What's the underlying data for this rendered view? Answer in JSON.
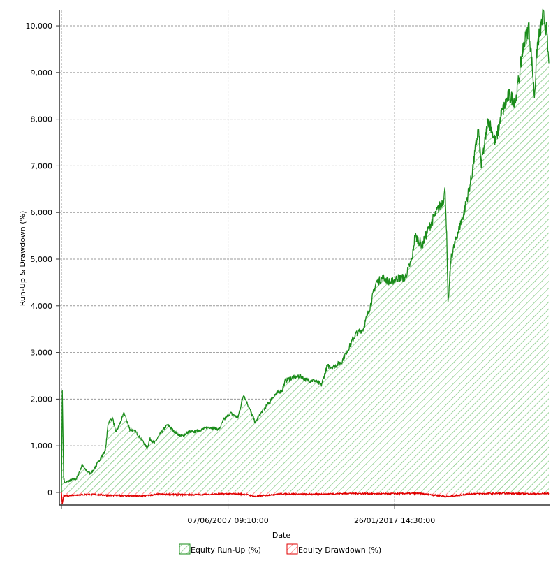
{
  "chart_data": {
    "type": "area",
    "title": "",
    "xlabel": "Date",
    "ylabel": "Run-Up & Drawdown (%)",
    "xlim": [
      "1997-10-15",
      "2025-12-31"
    ],
    "ylim": [
      -270,
      10330
    ],
    "grid": true,
    "legend_placement": "bottom",
    "x_ticks": [
      {
        "date": "1997-10-15",
        "label": ""
      },
      {
        "date": "2007-06-07",
        "label": "07/06/2007 09:10:00"
      },
      {
        "date": "2017-01-26",
        "label": "26/01/2017 14:30:00"
      }
    ],
    "y_ticks": [
      {
        "value": 0,
        "label": "0"
      },
      {
        "value": 1000,
        "label": "1,000"
      },
      {
        "value": 2000,
        "label": "2,000"
      },
      {
        "value": 3000,
        "label": "3,000"
      },
      {
        "value": 4000,
        "label": "4,000"
      },
      {
        "value": 5000,
        "label": "5,000"
      },
      {
        "value": 6000,
        "label": "6,000"
      },
      {
        "value": 7000,
        "label": "7,000"
      },
      {
        "value": 8000,
        "label": "8,000"
      },
      {
        "value": 9000,
        "label": "9,000"
      },
      {
        "value": 10000,
        "label": "10,000"
      }
    ],
    "series": [
      {
        "name": "Equity Run-Up (%)",
        "color": "#1a8c1a",
        "fill": "hatched",
        "points": [
          [
            "1997-10-15",
            0
          ],
          [
            "1997-11-01",
            2200
          ],
          [
            "1997-12-01",
            300
          ],
          [
            "1998-01-01",
            200
          ],
          [
            "1998-04-01",
            250
          ],
          [
            "1998-09-01",
            300
          ],
          [
            "1999-01-01",
            600
          ],
          [
            "1999-04-01",
            450
          ],
          [
            "1999-07-01",
            400
          ],
          [
            "1999-12-01",
            650
          ],
          [
            "2000-05-01",
            900
          ],
          [
            "2000-07-01",
            1500
          ],
          [
            "2000-10-01",
            1600
          ],
          [
            "2000-12-01",
            1300
          ],
          [
            "2001-02-01",
            1400
          ],
          [
            "2001-06-01",
            1700
          ],
          [
            "2001-10-01",
            1350
          ],
          [
            "2002-02-01",
            1300
          ],
          [
            "2002-07-01",
            1100
          ],
          [
            "2002-10-01",
            950
          ],
          [
            "2002-12-01",
            1150
          ],
          [
            "2003-03-01",
            1050
          ],
          [
            "2003-07-01",
            1250
          ],
          [
            "2003-12-01",
            1450
          ],
          [
            "2004-05-01",
            1300
          ],
          [
            "2004-10-01",
            1200
          ],
          [
            "2005-03-01",
            1300
          ],
          [
            "2005-07-01",
            1300
          ],
          [
            "2005-12-01",
            1350
          ],
          [
            "2006-05-01",
            1400
          ],
          [
            "2006-12-01",
            1350
          ],
          [
            "2007-03-01",
            1550
          ],
          [
            "2007-08-01",
            1700
          ],
          [
            "2008-01-01",
            1600
          ],
          [
            "2008-05-01",
            2100
          ],
          [
            "2008-09-01",
            1800
          ],
          [
            "2009-01-01",
            1500
          ],
          [
            "2009-05-01",
            1700
          ],
          [
            "2009-10-01",
            1900
          ],
          [
            "2010-03-01",
            2100
          ],
          [
            "2010-08-01",
            2200
          ],
          [
            "2010-10-01",
            2400
          ],
          [
            "2011-03-01",
            2450
          ],
          [
            "2011-08-01",
            2500
          ],
          [
            "2012-01-01",
            2400
          ],
          [
            "2012-06-01",
            2400
          ],
          [
            "2012-11-01",
            2300
          ],
          [
            "2013-03-01",
            2700
          ],
          [
            "2013-08-01",
            2700
          ],
          [
            "2014-01-01",
            2800
          ],
          [
            "2014-06-01",
            3100
          ],
          [
            "2014-11-01",
            3400
          ],
          [
            "2015-04-01",
            3500
          ],
          [
            "2015-09-01",
            4000
          ],
          [
            "2016-01-01",
            4500
          ],
          [
            "2016-06-01",
            4600
          ],
          [
            "2016-11-01",
            4500
          ],
          [
            "2017-04-01",
            4600
          ],
          [
            "2017-09-01",
            4600
          ],
          [
            "2018-02-01",
            5000
          ],
          [
            "2018-04-01",
            5500
          ],
          [
            "2018-09-01",
            5300
          ],
          [
            "2019-02-01",
            5700
          ],
          [
            "2019-07-01",
            6000
          ],
          [
            "2019-12-01",
            6300
          ],
          [
            "2020-01-01",
            6500
          ],
          [
            "2020-02-01",
            5500
          ],
          [
            "2020-03-01",
            4000
          ],
          [
            "2020-05-01",
            5000
          ],
          [
            "2020-09-01",
            5500
          ],
          [
            "2021-02-01",
            6000
          ],
          [
            "2021-07-01",
            6700
          ],
          [
            "2021-12-01",
            7800
          ],
          [
            "2022-02-01",
            7000
          ],
          [
            "2022-07-01",
            8000
          ],
          [
            "2022-12-01",
            7500
          ],
          [
            "2023-04-01",
            8100
          ],
          [
            "2023-09-01",
            8500
          ],
          [
            "2024-02-01",
            8400
          ],
          [
            "2024-07-01",
            9500
          ],
          [
            "2024-11-01",
            10000
          ],
          [
            "2025-01-01",
            9300
          ],
          [
            "2025-03-01",
            8500
          ],
          [
            "2025-05-01",
            9600
          ],
          [
            "2025-09-01",
            10200
          ],
          [
            "2025-11-01",
            10000
          ],
          [
            "2025-12-31",
            9200
          ]
        ]
      },
      {
        "name": "Equity Drawdown (%)",
        "color": "#e00000",
        "fill": "hatched",
        "points": [
          [
            "1997-10-15",
            0
          ],
          [
            "1997-11-01",
            -250
          ],
          [
            "1997-12-01",
            -80
          ],
          [
            "1998-06-01",
            -60
          ],
          [
            "1999-06-01",
            -40
          ],
          [
            "2000-06-01",
            -60
          ],
          [
            "2002-06-01",
            -80
          ],
          [
            "2003-06-01",
            -40
          ],
          [
            "2005-06-01",
            -50
          ],
          [
            "2007-06-01",
            -30
          ],
          [
            "2008-06-01",
            -40
          ],
          [
            "2009-01-01",
            -90
          ],
          [
            "2010-06-01",
            -30
          ],
          [
            "2012-06-01",
            -40
          ],
          [
            "2014-06-01",
            -20
          ],
          [
            "2016-06-01",
            -30
          ],
          [
            "2018-06-01",
            -20
          ],
          [
            "2020-03-01",
            -90
          ],
          [
            "2021-06-01",
            -30
          ],
          [
            "2023-06-01",
            -20
          ],
          [
            "2025-06-01",
            -30
          ],
          [
            "2025-12-31",
            -20
          ]
        ]
      }
    ]
  }
}
